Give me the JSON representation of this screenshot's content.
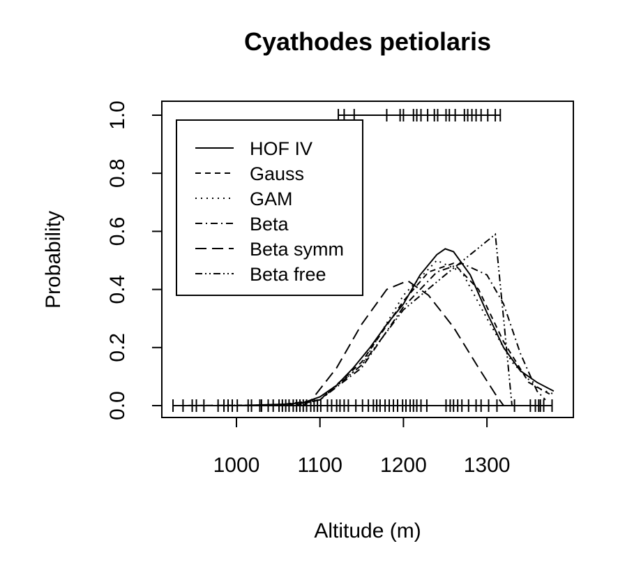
{
  "chart_data": {
    "type": "line",
    "title": "Cyathodes petiolaris",
    "xlabel": "Altitude (m)",
    "ylabel": "Probability",
    "xlim": [
      925,
      1385
    ],
    "ylim": [
      -0.04,
      1.05
    ],
    "xticks": [
      1000,
      1100,
      1200,
      1300
    ],
    "xtick_labels": [
      "1000",
      "1100",
      "1200",
      "1300"
    ],
    "yticks": [
      0,
      0.2,
      0.4,
      0.6,
      0.8,
      1.0
    ],
    "ytick_labels": [
      "0.0",
      "0.2",
      "0.4",
      "0.6",
      "0.8",
      "1.0"
    ],
    "grid": false,
    "legend_position": "top-left",
    "series": [
      {
        "name": "HOF IV",
        "dash": "solid",
        "x": [
          930,
          1000,
          1060,
          1080,
          1100,
          1120,
          1140,
          1160,
          1180,
          1200,
          1220,
          1240,
          1250,
          1260,
          1280,
          1300,
          1320,
          1340,
          1360,
          1380
        ],
        "y": [
          0,
          0,
          0.005,
          0.01,
          0.03,
          0.07,
          0.13,
          0.2,
          0.28,
          0.35,
          0.45,
          0.52,
          0.54,
          0.53,
          0.45,
          0.32,
          0.2,
          0.12,
          0.08,
          0.05
        ]
      },
      {
        "name": "Gauss",
        "dash": "8,6",
        "x": [
          930,
          1050,
          1100,
          1150,
          1200,
          1230,
          1260,
          1290,
          1320,
          1350,
          1375
        ],
        "y": [
          0,
          0.002,
          0.02,
          0.15,
          0.36,
          0.46,
          0.49,
          0.4,
          0.22,
          0.08,
          0.04
        ]
      },
      {
        "name": "GAM",
        "dash": "2,6",
        "x": [
          930,
          1050,
          1100,
          1150,
          1200,
          1240,
          1270,
          1300,
          1330,
          1360,
          1380
        ],
        "y": [
          0,
          0.002,
          0.02,
          0.14,
          0.38,
          0.5,
          0.46,
          0.3,
          0.15,
          0.06,
          0.04
        ]
      },
      {
        "name": "Beta",
        "dash": "10,5,2,5",
        "x": [
          1060,
          1100,
          1150,
          1200,
          1240,
          1270,
          1300,
          1320,
          1340,
          1360,
          1370
        ],
        "y": [
          0,
          0.02,
          0.13,
          0.34,
          0.46,
          0.49,
          0.45,
          0.35,
          0.18,
          0.05,
          0.02
        ]
      },
      {
        "name": "Beta symm",
        "dash": "16,8",
        "x": [
          1080,
          1090,
          1120,
          1150,
          1180,
          1205,
          1230,
          1260,
          1290,
          1310,
          1320
        ],
        "y": [
          0,
          0.02,
          0.13,
          0.28,
          0.4,
          0.43,
          0.38,
          0.27,
          0.13,
          0.04,
          0
        ]
      },
      {
        "name": "Beta free",
        "dash": "10,4,2,4,2,4",
        "x": [
          1070,
          1100,
          1150,
          1200,
          1250,
          1280,
          1310,
          1320,
          1330
        ],
        "y": [
          0,
          0.02,
          0.14,
          0.33,
          0.45,
          0.52,
          0.59,
          0.3,
          0
        ]
      }
    ],
    "presence_rug": [
      1122,
      1129,
      1141,
      1180,
      1196,
      1200,
      1212,
      1216,
      1221,
      1229,
      1237,
      1241,
      1251,
      1255,
      1262,
      1273,
      1277,
      1282,
      1287,
      1293,
      1301,
      1310,
      1316
    ],
    "absence_rug": [
      924,
      936,
      947,
      952,
      961,
      978,
      985,
      990,
      995,
      1001,
      1014,
      1018,
      1028,
      1030,
      1038,
      1044,
      1051,
      1055,
      1059,
      1063,
      1068,
      1072,
      1076,
      1080,
      1084,
      1089,
      1093,
      1097,
      1101,
      1109,
      1114,
      1120,
      1124,
      1129,
      1134,
      1143,
      1151,
      1158,
      1164,
      1168,
      1172,
      1178,
      1183,
      1188,
      1193,
      1199,
      1203,
      1208,
      1212,
      1216,
      1221,
      1228,
      1251,
      1256,
      1260,
      1265,
      1270,
      1278,
      1287,
      1293,
      1302,
      1312,
      1333,
      1352,
      1358,
      1362,
      1364,
      1368,
      1378
    ]
  }
}
